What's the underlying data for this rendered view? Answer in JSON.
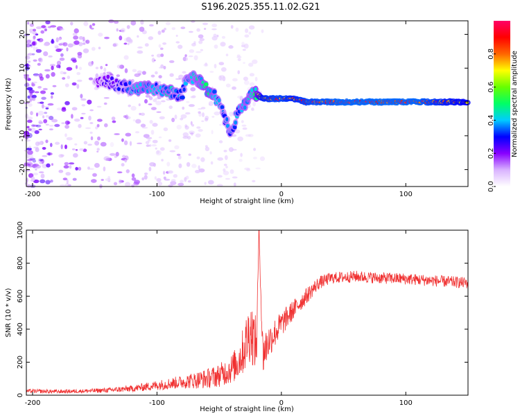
{
  "title": "S196.2025.355.11.02.G21",
  "chart_data": [
    {
      "type": "heatmap",
      "name": "spectrogram",
      "xlabel": "Height of straight line (km)",
      "ylabel": "Frequency (Hz)",
      "xlim": [
        -205,
        150
      ],
      "ylim": [
        -25,
        24
      ],
      "xticks": [
        -200,
        -100,
        0,
        100
      ],
      "yticks": [
        -20,
        -10,
        0,
        10,
        20
      ],
      "colorbar": {
        "label": "Normalized spectral amplitude",
        "range": [
          0,
          1
        ],
        "ticks": [
          0.0,
          0.2,
          0.4,
          0.6,
          0.8
        ],
        "tick_labels": [
          "0.0",
          "0.2",
          "0.4",
          "0.6",
          "0.8"
        ],
        "colormap": [
          "#ffffff",
          "#d9b3ff",
          "#8800ff",
          "#0000ff",
          "#00ccff",
          "#00ff66",
          "#66ff00",
          "#ffff00",
          "#ff6600",
          "#ff0000",
          "#ff0066"
        ]
      },
      "ridge": [
        {
          "h": -150,
          "f": 5,
          "a": 0.2
        },
        {
          "h": -140,
          "f": 6,
          "a": 0.25
        },
        {
          "h": -130,
          "f": 5,
          "a": 0.3
        },
        {
          "h": -120,
          "f": 4,
          "a": 0.4
        },
        {
          "h": -110,
          "f": 4,
          "a": 0.45
        },
        {
          "h": -100,
          "f": 4,
          "a": 0.4
        },
        {
          "h": -90,
          "f": 3,
          "a": 0.45
        },
        {
          "h": -80,
          "f": 2,
          "a": 0.35
        },
        {
          "h": -75,
          "f": 8,
          "a": 0.4
        },
        {
          "h": -65,
          "f": 6,
          "a": 0.45
        },
        {
          "h": -58,
          "f": 3,
          "a": 0.5
        },
        {
          "h": -52,
          "f": 1,
          "a": 0.4
        },
        {
          "h": -45,
          "f": -5,
          "a": 0.35
        },
        {
          "h": -40,
          "f": -10,
          "a": 0.4
        },
        {
          "h": -35,
          "f": -3,
          "a": 0.4
        },
        {
          "h": -28,
          "f": 0,
          "a": 0.45
        },
        {
          "h": -22,
          "f": 3,
          "a": 0.45
        },
        {
          "h": -15,
          "f": 1,
          "a": 0.9
        },
        {
          "h": -5,
          "f": 1,
          "a": 0.95
        },
        {
          "h": 0,
          "f": 1,
          "a": 0.95
        },
        {
          "h": 10,
          "f": 1,
          "a": 0.9
        },
        {
          "h": 20,
          "f": 0,
          "a": 0.95
        },
        {
          "h": 50,
          "f": 0,
          "a": 1.0
        },
        {
          "h": 80,
          "f": 0,
          "a": 1.0
        },
        {
          "h": 110,
          "f": 0,
          "a": 1.0
        },
        {
          "h": 130,
          "f": 0,
          "a": 0.9
        },
        {
          "h": 150,
          "f": 0,
          "a": 0.85
        }
      ]
    },
    {
      "type": "line",
      "name": "snr",
      "xlabel": "Height of straight line (km)",
      "ylabel": "SNR (10 * v/v)",
      "xlim": [
        -205,
        150
      ],
      "ylim": [
        0,
        1000
      ],
      "xticks": [
        -200,
        -100,
        0,
        100
      ],
      "yticks": [
        0,
        200,
        400,
        600,
        800,
        1000
      ],
      "series": [
        {
          "name": "SNR",
          "color": "#f03030",
          "x": [
            -205,
            -180,
            -160,
            -140,
            -120,
            -100,
            -90,
            -80,
            -70,
            -60,
            -50,
            -40,
            -35,
            -30,
            -25,
            -20,
            -18,
            -15,
            -10,
            -5,
            0,
            10,
            20,
            30,
            40,
            50,
            60,
            80,
            100,
            120,
            140,
            150
          ],
          "y": [
            25,
            22,
            25,
            30,
            40,
            60,
            70,
            80,
            90,
            100,
            120,
            160,
            200,
            280,
            400,
            300,
            1000,
            250,
            330,
            380,
            430,
            520,
            600,
            680,
            710,
            715,
            720,
            710,
            705,
            695,
            685,
            680
          ],
          "jitter": [
            12,
            12,
            12,
            15,
            20,
            30,
            35,
            40,
            50,
            60,
            70,
            90,
            110,
            150,
            200,
            160,
            0,
            150,
            100,
            90,
            80,
            60,
            50,
            40,
            35,
            35,
            35,
            35,
            35,
            35,
            35,
            35
          ]
        }
      ]
    }
  ]
}
